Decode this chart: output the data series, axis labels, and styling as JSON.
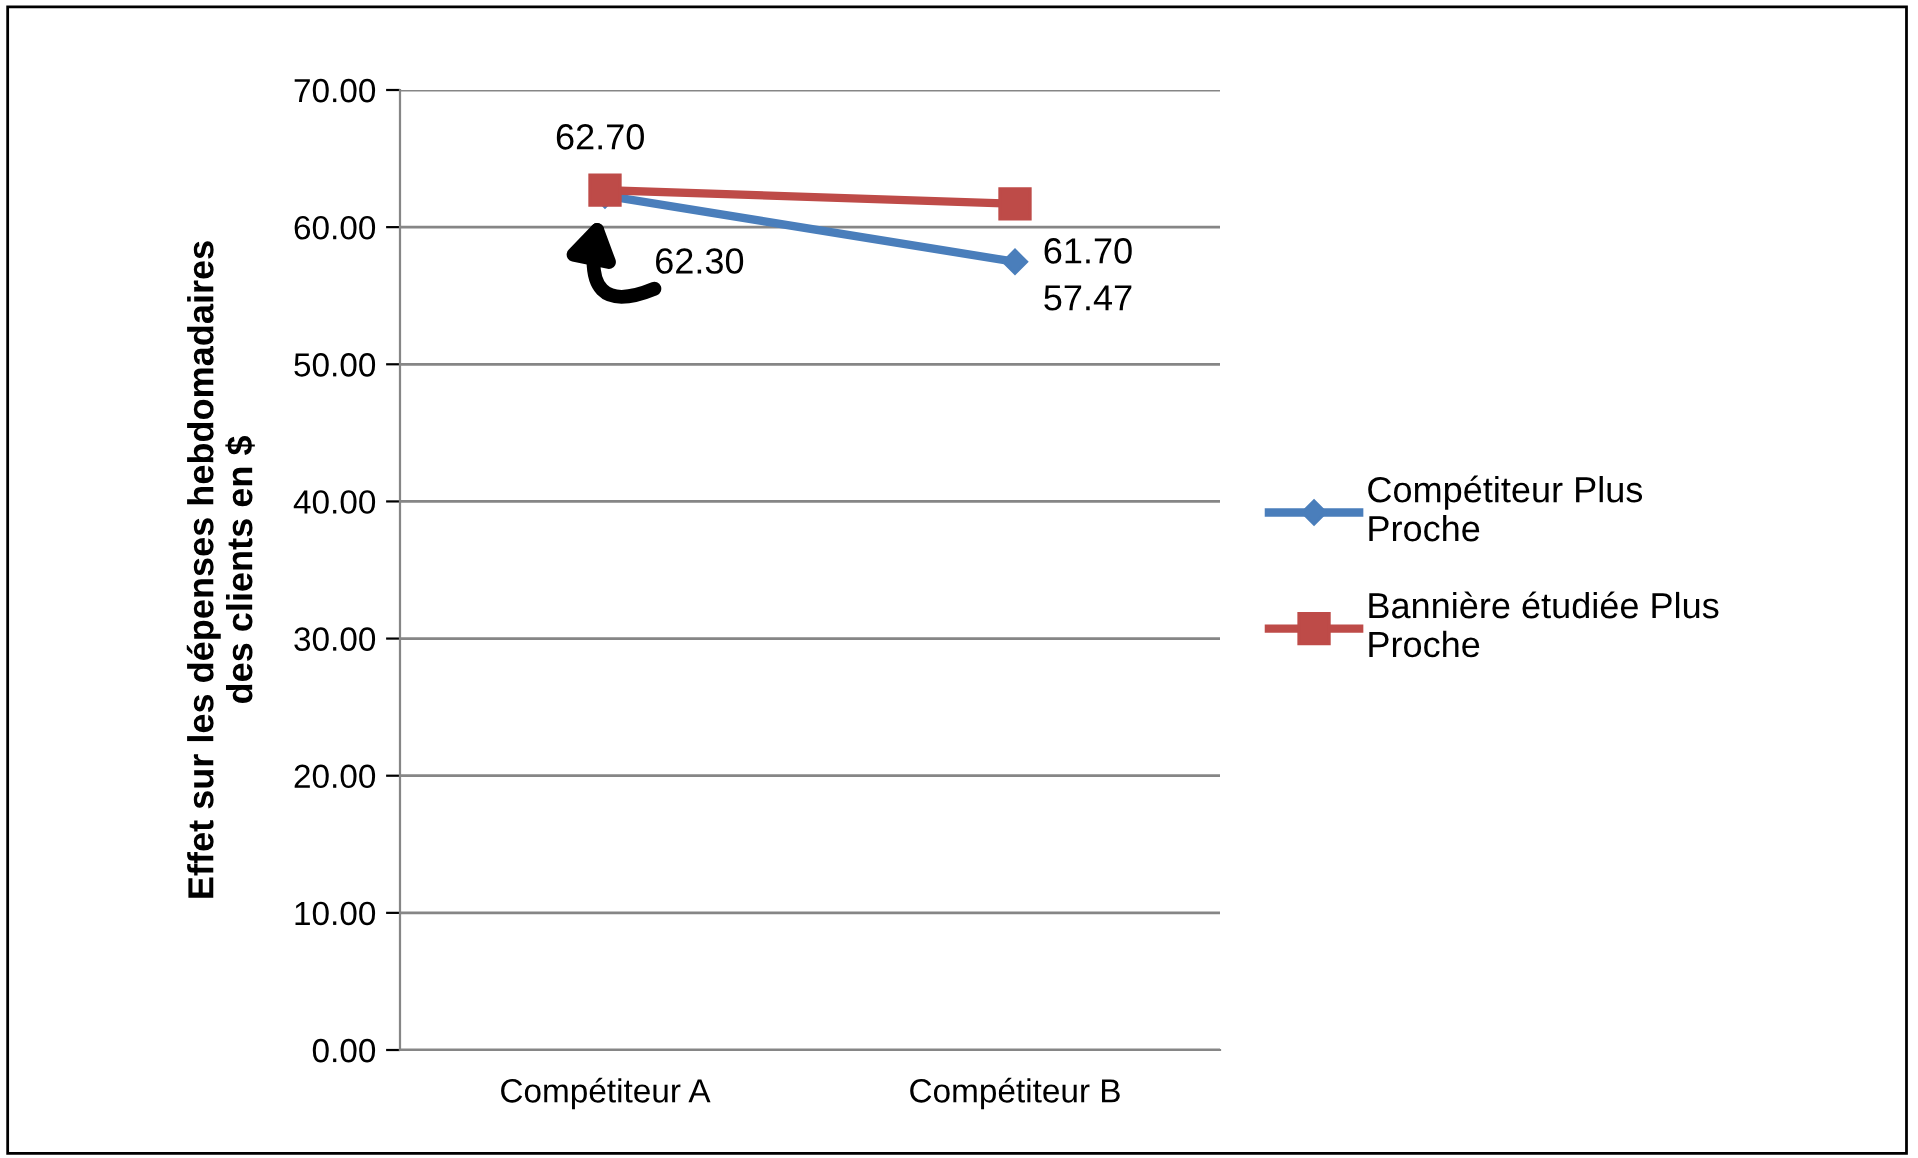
{
  "chart_data": {
    "type": "line",
    "ylabel": "Effet sur les dépenses hebdomadaires des clients en $",
    "categories": [
      "Compétiteur A",
      "Compétiteur B"
    ],
    "series": [
      {
        "name": "Compétiteur Plus Proche",
        "color": "#4a7ebb",
        "marker": "diamond",
        "values": [
          62.3,
          57.47
        ],
        "value_labels": [
          "62.30",
          "57.47"
        ]
      },
      {
        "name": "Bannière étudiée Plus Proche",
        "color": "#be4b48",
        "marker": "square",
        "values": [
          62.7,
          61.7
        ],
        "value_labels": [
          "62.70",
          "61.70"
        ]
      }
    ],
    "ylim": [
      0,
      70
    ],
    "yticks": [
      {
        "value": 0,
        "label": "0.00"
      },
      {
        "value": 10,
        "label": "10.00"
      },
      {
        "value": 20,
        "label": "20.00"
      },
      {
        "value": 30,
        "label": "30.00"
      },
      {
        "value": 40,
        "label": "40.00"
      },
      {
        "value": 50,
        "label": "50.00"
      },
      {
        "value": 60,
        "label": "60.00"
      },
      {
        "value": 70,
        "label": "70.00"
      }
    ],
    "grid": "y",
    "legend": "right",
    "line_style": "solid"
  }
}
